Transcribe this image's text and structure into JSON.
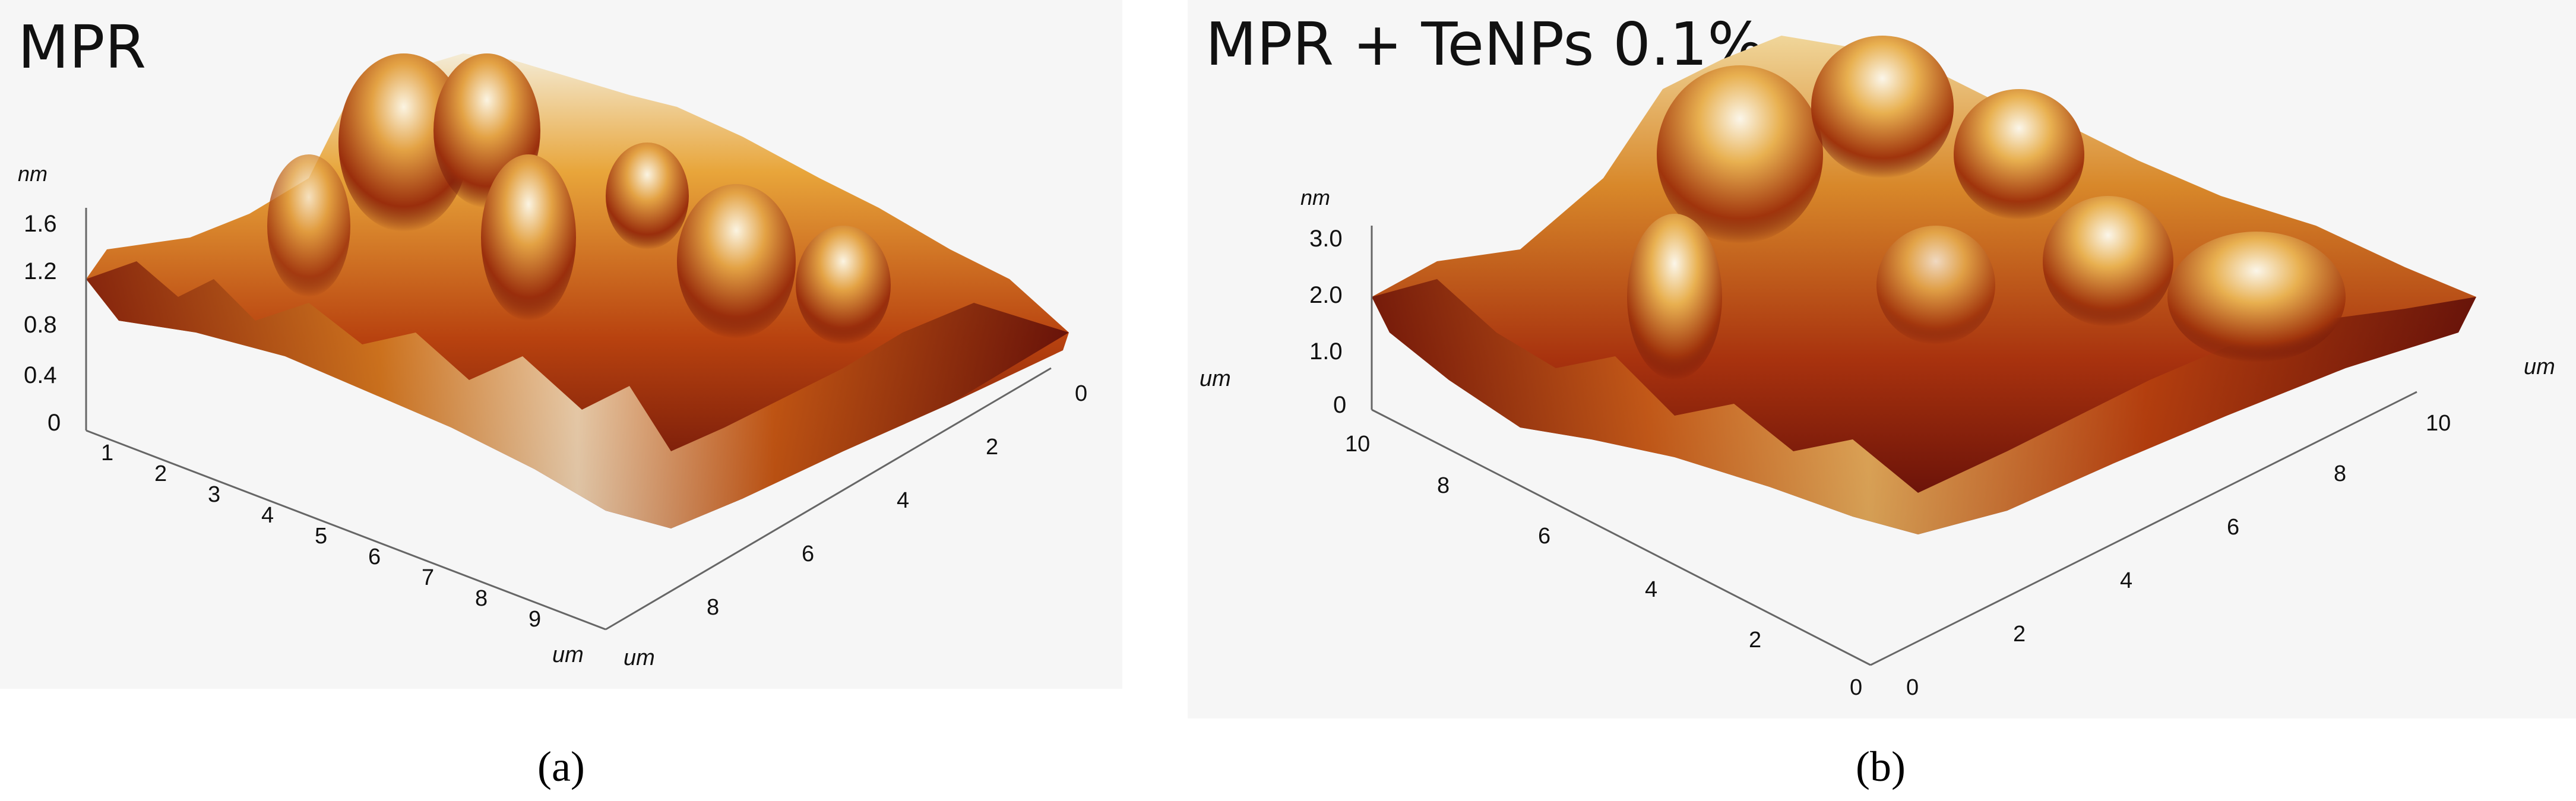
{
  "panel_a": {
    "title": "MPR",
    "z_unit": "nm",
    "z_ticks": [
      "1.6",
      "1.2",
      "0.8",
      "0.4",
      "0"
    ],
    "x_ticks": [
      "1",
      "2",
      "3",
      "4",
      "5",
      "6",
      "7",
      "8",
      "9"
    ],
    "x_unit": "um",
    "y_ticks": [
      "0",
      "2",
      "4",
      "6",
      "8"
    ],
    "y_unit": "um",
    "caption": "(a)"
  },
  "panel_b": {
    "title": "MPR + TeNPs 0.1%",
    "z_unit": "nm",
    "z_ticks": [
      "3.0",
      "2.0",
      "1.0",
      "0"
    ],
    "z_left_unit": "um",
    "left_axis_ticks": [
      "10",
      "8",
      "6",
      "4",
      "2",
      "0"
    ],
    "right_axis_ticks": [
      "0",
      "2",
      "4",
      "6",
      "8",
      "10"
    ],
    "right_unit": "um",
    "caption": "(b)"
  },
  "colors": {
    "surface_dark": "#5a0a08",
    "surface_mid": "#b8420f",
    "surface_light": "#e8a53a",
    "surface_highlight": "#f4ecd6",
    "background": "#f6f6f6"
  }
}
